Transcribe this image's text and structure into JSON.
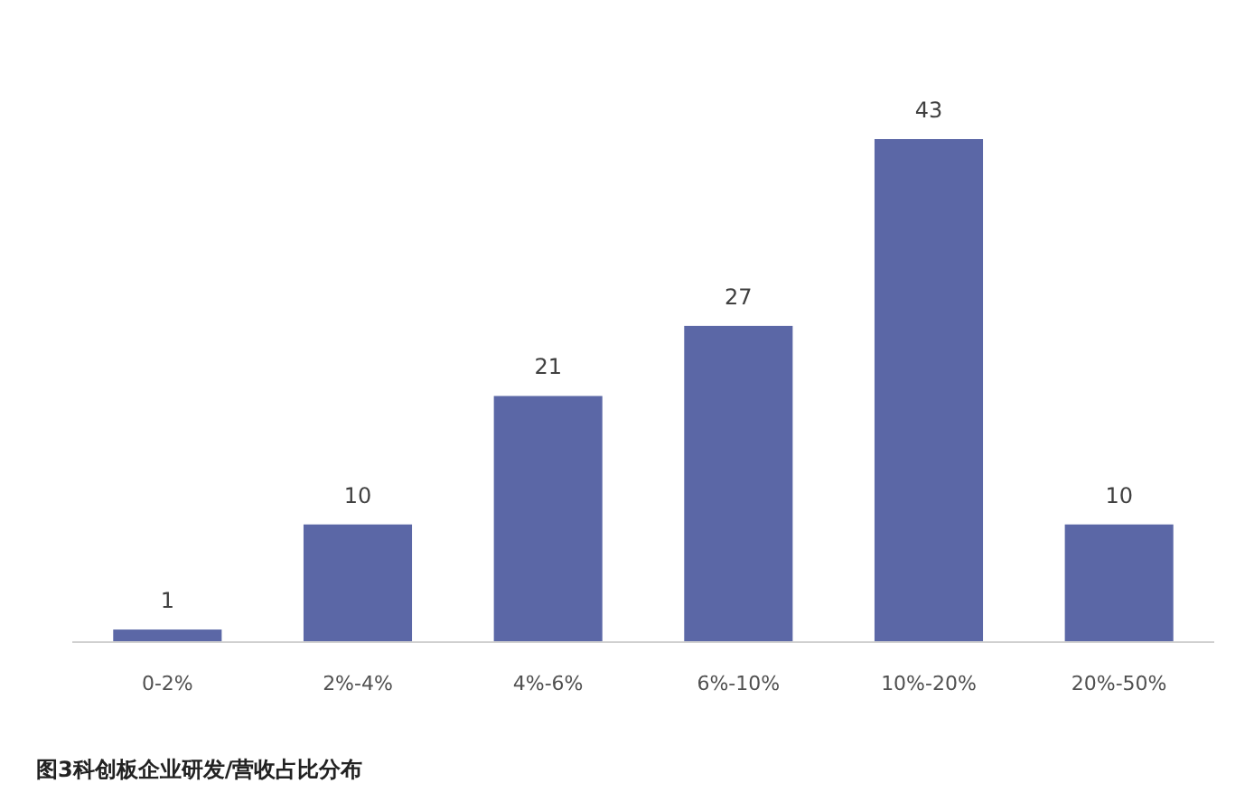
{
  "chart_data": {
    "type": "bar",
    "title": "图3科创板企业研发/营收占比分布",
    "categories": [
      "0-2%",
      "2%-4%",
      "4%-6%",
      "6%-10%",
      "10%-20%",
      "20%-50%"
    ],
    "values": [
      1,
      10,
      21,
      27,
      43,
      10
    ],
    "color": "#5b67a6",
    "data_labels": true
  }
}
